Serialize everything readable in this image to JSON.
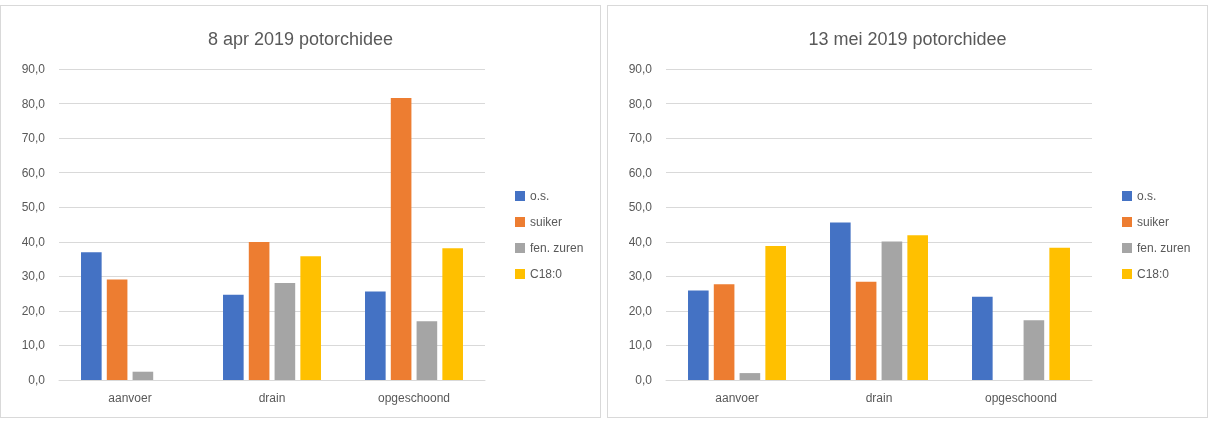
{
  "chart_data": [
    {
      "type": "bar",
      "title": "8 apr 2019 potorchidee",
      "categories": [
        "aanvoer",
        "drain",
        "opgeschoond"
      ],
      "series": [
        {
          "name": "o.s.",
          "color": "#4472c4",
          "values": [
            37.0,
            24.7,
            25.6
          ]
        },
        {
          "name": "suiker",
          "color": "#ed7d31",
          "values": [
            29.1,
            39.9,
            81.6
          ]
        },
        {
          "name": "fen. zuren",
          "color": "#a5a5a5",
          "values": [
            2.4,
            28.1,
            17.0
          ]
        },
        {
          "name": "C18:0",
          "color": "#ffc000",
          "values": [
            null,
            35.8,
            38.1
          ]
        }
      ],
      "ylim": [
        0,
        90
      ],
      "yticks": [
        {
          "value": 0,
          "label": "0,0"
        },
        {
          "value": 10,
          "label": "10,0"
        },
        {
          "value": 20,
          "label": "20,0"
        },
        {
          "value": 30,
          "label": "30,0"
        },
        {
          "value": 40,
          "label": "40,0"
        },
        {
          "value": 50,
          "label": "50,0"
        },
        {
          "value": 60,
          "label": "60,0"
        },
        {
          "value": 70,
          "label": "70,0"
        },
        {
          "value": 80,
          "label": "80,0"
        },
        {
          "value": 90,
          "label": "90,0"
        }
      ],
      "grid": "y",
      "legend": "right"
    },
    {
      "type": "bar",
      "title": "13 mei 2019 potorchidee",
      "categories": [
        "aanvoer",
        "drain",
        "opgeschoond"
      ],
      "series": [
        {
          "name": "o.s.",
          "color": "#4472c4",
          "values": [
            25.9,
            45.6,
            24.1
          ]
        },
        {
          "name": "suiker",
          "color": "#ed7d31",
          "values": [
            27.7,
            28.4,
            null
          ]
        },
        {
          "name": "fen. zuren",
          "color": "#a5a5a5",
          "values": [
            2.0,
            40.1,
            17.3
          ]
        },
        {
          "name": "C18:0",
          "color": "#ffc000",
          "values": [
            38.8,
            41.9,
            38.3
          ]
        }
      ],
      "ylim": [
        0,
        90
      ],
      "yticks": [
        {
          "value": 0,
          "label": "0,0"
        },
        {
          "value": 10,
          "label": "10,0"
        },
        {
          "value": 20,
          "label": "20,0"
        },
        {
          "value": 30,
          "label": "30,0"
        },
        {
          "value": 40,
          "label": "40,0"
        },
        {
          "value": 50,
          "label": "50,0"
        },
        {
          "value": 60,
          "label": "60,0"
        },
        {
          "value": 70,
          "label": "70,0"
        },
        {
          "value": 80,
          "label": "80,0"
        },
        {
          "value": 90,
          "label": "90,0"
        }
      ],
      "grid": "y",
      "legend": "right"
    }
  ]
}
